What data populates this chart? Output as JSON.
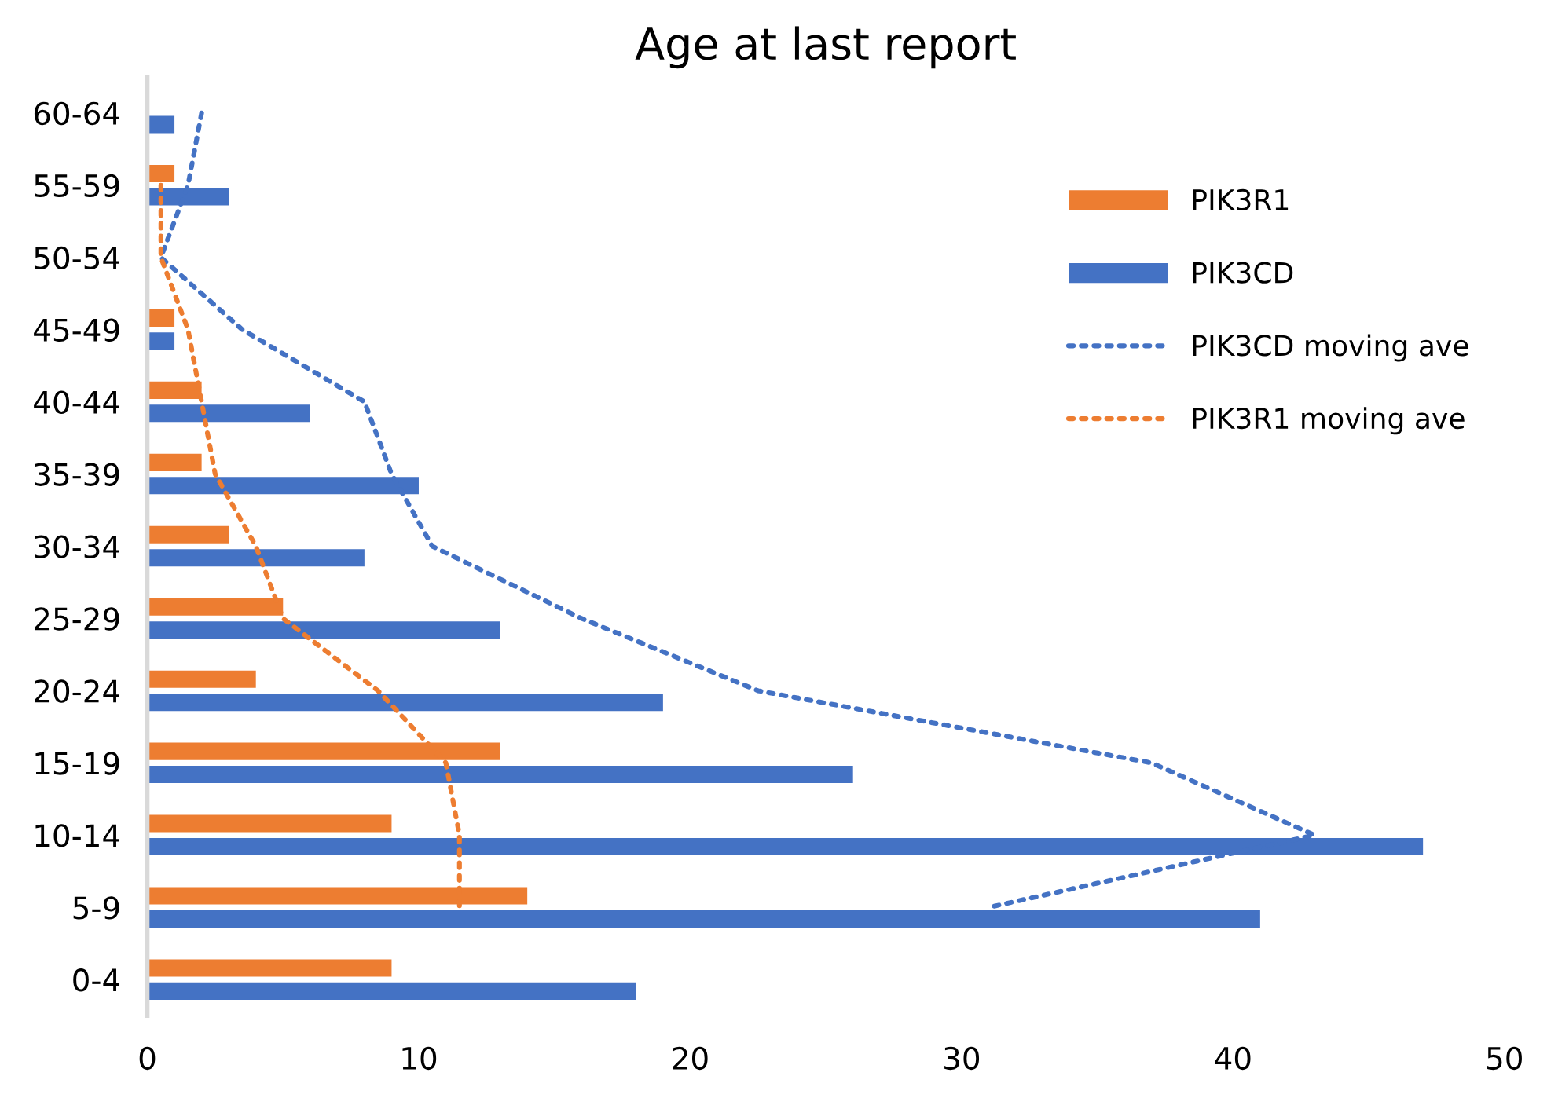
{
  "chart_data": {
    "type": "bar",
    "orientation": "horizontal",
    "title": "Age at last report",
    "categories": [
      "60-64",
      "55-59",
      "50-54",
      "45-49",
      "40-44",
      "35-39",
      "30-34",
      "25-29",
      "20-24",
      "15-19",
      "10-14",
      "5-9",
      "0-4"
    ],
    "series": [
      {
        "name": "PIK3R1",
        "color": "#ed7d31",
        "values": [
          0,
          1,
          0,
          1,
          2,
          2,
          3,
          5,
          4,
          13,
          9,
          14,
          9
        ]
      },
      {
        "name": "PIK3CD",
        "color": "#4472c4",
        "values": [
          1,
          3,
          0,
          1,
          6,
          10,
          8,
          13,
          19,
          26,
          47,
          41,
          18
        ]
      },
      {
        "name": "PIK3CD moving ave",
        "type": "line",
        "line_style": "dotted",
        "color": "#4472c4",
        "values": [
          2,
          1.5,
          0.5,
          3.5,
          8,
          9,
          10.5,
          16,
          22.5,
          37,
          43,
          31,
          null
        ]
      },
      {
        "name": "PIK3R1 moving ave",
        "type": "line",
        "line_style": "dotted",
        "color": "#ed7d31",
        "values": [
          null,
          0.5,
          0.5,
          1.5,
          2,
          2.5,
          4,
          5,
          8.5,
          11,
          11.5,
          11.5,
          null
        ]
      }
    ],
    "xlim": [
      0,
      50
    ],
    "xticks": [
      0,
      10,
      20,
      30,
      40,
      50
    ],
    "grid": false,
    "legend": "right",
    "marker": "none"
  }
}
